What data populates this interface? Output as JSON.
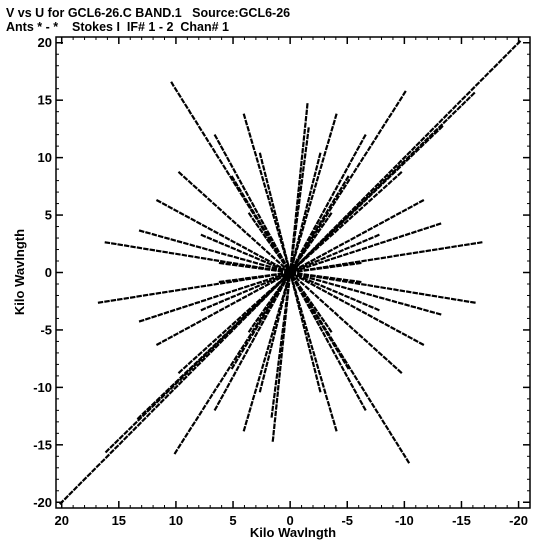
{
  "header": {
    "line1": "V vs U for GCL6-26.C BAND.1   Source:GCL6-26",
    "line2": "Ants * - *    Stokes I  IF# 1 - 2  Chan# 1"
  },
  "chart_data": {
    "type": "scatter",
    "title": "V vs U for GCL6-26.C BAND.1   Source:GCL6-26",
    "subtitle": "Ants * - *    Stokes I  IF# 1 - 2  Chan# 1",
    "xlabel": "Kilo Wavlngth",
    "ylabel": "Kilo Wavlngth",
    "xlim": [
      20.5,
      -21
    ],
    "ylim": [
      -20.5,
      20.5
    ],
    "x_reversed": true,
    "grid": false,
    "x_ticks": [
      20,
      15,
      10,
      5,
      0,
      -5,
      -10,
      -15,
      -20
    ],
    "x_tick_labels": [
      "20",
      "15",
      "10",
      "5",
      "0",
      "-5",
      "-10",
      "-15",
      "-20"
    ],
    "y_ticks": [
      20,
      15,
      10,
      5,
      0,
      -5,
      -10,
      -15,
      -20
    ],
    "y_tick_labels": [
      "20",
      "15",
      "10",
      "5",
      "0",
      "-5",
      "-10",
      "-15",
      "-20"
    ],
    "marker_color": "#000000",
    "series": [
      {
        "tracks": [
          [
            [
              20.0,
              -20.0
            ],
            [
              -20.0,
              20.0
            ]
          ],
          [
            [
              16.0,
              -15.5
            ],
            [
              -16.0,
              15.5
            ]
          ],
          [
            [
              13.2,
              -12.6
            ],
            [
              -13.2,
              12.6
            ]
          ],
          [
            [
              1.6,
              -12.4
            ],
            [
              -1.6,
              12.4
            ]
          ],
          [
            [
              1.5,
              -14.5
            ],
            [
              -1.5,
              14.5
            ]
          ],
          [
            [
              16.0,
              2.6
            ],
            [
              -16.0,
              -2.6
            ]
          ],
          [
            [
              16.6,
              -2.6
            ],
            [
              -16.6,
              2.6
            ]
          ],
          [
            [
              10.3,
              16.4
            ],
            [
              -10.3,
              -16.4
            ]
          ],
          [
            [
              10.0,
              -15.6
            ],
            [
              -10.0,
              15.6
            ]
          ],
          [
            [
              13.0,
              3.6
            ],
            [
              -13.0,
              -3.6
            ]
          ],
          [
            [
              13.0,
              -4.2
            ],
            [
              -13.0,
              4.2
            ]
          ],
          [
            [
              9.6,
              8.6
            ],
            [
              -9.6,
              -8.6
            ]
          ],
          [
            [
              9.6,
              -8.6
            ],
            [
              -9.6,
              8.6
            ]
          ],
          [
            [
              6.5,
              11.8
            ],
            [
              -6.5,
              -11.8
            ]
          ],
          [
            [
              6.5,
              -11.8
            ],
            [
              -6.5,
              11.8
            ]
          ],
          [
            [
              4.0,
              13.6
            ],
            [
              -4.0,
              -13.6
            ]
          ],
          [
            [
              4.0,
              -13.6
            ],
            [
              -4.0,
              13.6
            ]
          ],
          [
            [
              11.5,
              6.2
            ],
            [
              -11.5,
              -6.2
            ]
          ],
          [
            [
              11.5,
              -6.2
            ],
            [
              -11.5,
              6.2
            ]
          ],
          [
            [
              7.6,
              3.2
            ],
            [
              -7.6,
              -3.2
            ]
          ],
          [
            [
              7.6,
              -3.2
            ],
            [
              -7.6,
              3.2
            ]
          ],
          [
            [
              5.0,
              8.2
            ],
            [
              -5.0,
              -8.2
            ]
          ],
          [
            [
              5.0,
              -8.2
            ],
            [
              -5.0,
              8.2
            ]
          ],
          [
            [
              3.5,
              5.0
            ],
            [
              -3.5,
              -5.0
            ]
          ],
          [
            [
              3.5,
              -5.0
            ],
            [
              -3.5,
              5.0
            ]
          ],
          [
            [
              6.0,
              0.8
            ],
            [
              -6.0,
              -0.8
            ]
          ],
          [
            [
              6.0,
              -0.8
            ],
            [
              -6.0,
              0.8
            ]
          ],
          [
            [
              2.6,
              10.2
            ],
            [
              -2.6,
              -10.2
            ]
          ],
          [
            [
              2.6,
              -10.2
            ],
            [
              -2.6,
              10.2
            ]
          ]
        ]
      }
    ]
  }
}
